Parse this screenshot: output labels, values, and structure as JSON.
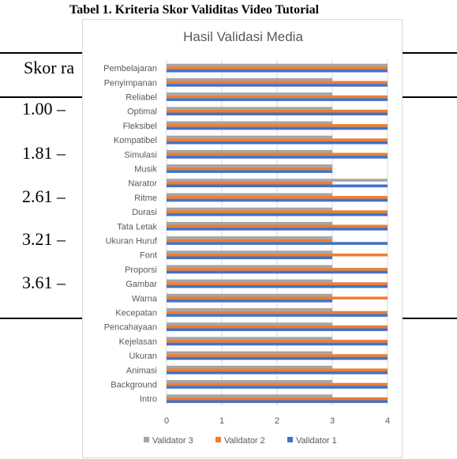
{
  "document": {
    "table_title": "Tabel 1. Kriteria Skor Validitas Video Tutorial",
    "header_cell": "Skor ra",
    "rows": [
      "1.00 –",
      "1.81 –",
      "2.61 –",
      "3.21 –",
      "3.61 –"
    ]
  },
  "chart_data": {
    "type": "bar",
    "orientation": "horizontal",
    "title": "Hasil Validasi Media",
    "categories": [
      "Pembelajaran",
      "Penyimpanan",
      "Reliabel",
      "Optimal",
      "Fleksibel",
      "Kompatibel",
      "Simulasi",
      "Musik",
      "Narator",
      "Ritme",
      "Durasi",
      "Tata Letak",
      "Ukuran Huruf",
      "Font",
      "Proporsi",
      "Gambar",
      "Warna",
      "Kecepatan",
      "Pencahayaan",
      "Kejelasan",
      "Ukuran",
      "Animasi",
      "Background",
      "Intro"
    ],
    "series": [
      {
        "name": "Validator 3",
        "color": "#a5a5a5",
        "values": [
          4,
          3,
          3,
          3,
          3,
          3,
          3,
          3,
          4,
          3,
          3,
          3,
          3,
          3,
          3,
          3,
          3,
          3,
          3,
          3,
          3,
          3,
          3,
          3
        ]
      },
      {
        "name": "Validator 2",
        "color": "#ed7d31",
        "values": [
          4,
          4,
          4,
          4,
          4,
          4,
          4,
          3,
          3,
          4,
          4,
          4,
          3,
          4,
          4,
          4,
          4,
          4,
          4,
          4,
          4,
          4,
          4,
          4
        ]
      },
      {
        "name": "Validator 1",
        "color": "#4472c4",
        "values": [
          4,
          4,
          4,
          4,
          4,
          4,
          4,
          3,
          4,
          4,
          4,
          4,
          4,
          3,
          4,
          4,
          3,
          4,
          4,
          4,
          4,
          4,
          4,
          4
        ]
      }
    ],
    "xlim": [
      0,
      4
    ],
    "xticks": [
      0,
      1,
      2,
      3,
      4
    ],
    "legend_position": "bottom",
    "grid": true
  }
}
